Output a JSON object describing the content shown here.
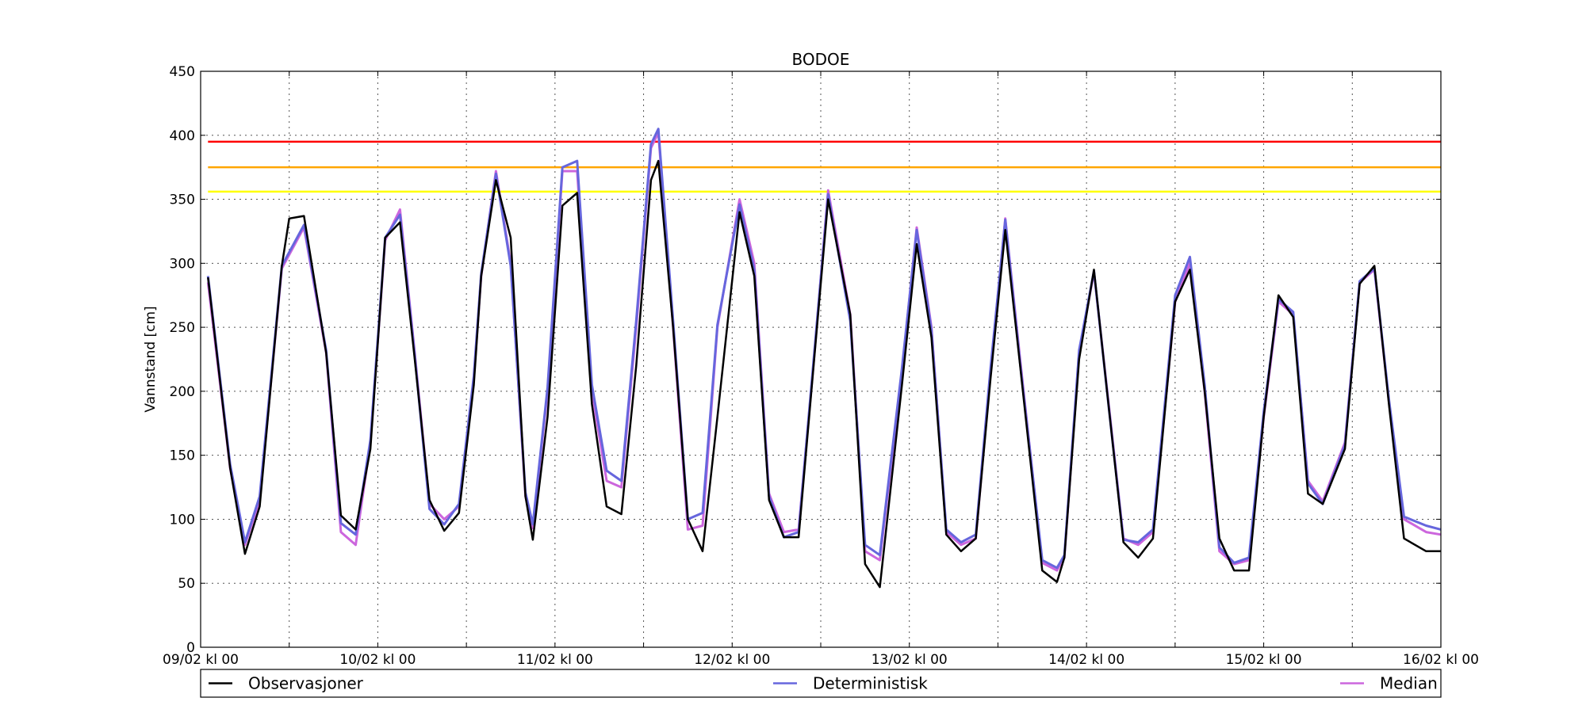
{
  "chart_data": {
    "type": "line",
    "title": "BODOE",
    "xlabel": "",
    "ylabel": "Vannstand [cm]",
    "ylim": [
      0,
      450
    ],
    "yticks": [
      0,
      50,
      100,
      150,
      200,
      250,
      300,
      350,
      400,
      450
    ],
    "x_unit": "hours from 09/02 kl 00",
    "xlim": [
      0,
      168
    ],
    "xtick_labels": [
      "09/02 kl 00",
      "10/02 kl 00",
      "11/02 kl 00",
      "12/02 kl 00",
      "13/02 kl 00",
      "14/02 kl 00",
      "15/02 kl 00",
      "16/02 kl 00"
    ],
    "xticks": [
      0,
      24,
      48,
      72,
      96,
      120,
      144,
      168
    ],
    "xticks_minor": [
      12,
      36,
      60,
      84,
      108,
      132,
      156
    ],
    "grid": true,
    "legend_position": "bottom",
    "thresholds": [
      {
        "value": 395,
        "color": "#ff0000"
      },
      {
        "value": 375,
        "color": "#ffa500"
      },
      {
        "value": 356,
        "color": "#ffff00"
      }
    ],
    "series": [
      {
        "name": "Median",
        "color": "#cc66dd",
        "x": [
          1,
          4,
          6,
          8,
          11,
          14,
          17,
          19,
          21,
          23,
          25,
          27,
          29,
          31,
          33,
          35,
          37,
          38,
          40,
          42,
          44,
          45,
          47,
          49,
          51,
          53,
          55,
          57,
          59,
          61,
          62,
          64,
          66,
          68,
          70,
          73,
          75,
          77,
          79,
          81,
          83,
          85,
          88,
          90,
          92,
          95,
          97,
          99,
          101,
          103,
          105,
          107,
          109,
          111,
          114,
          116,
          117,
          119,
          121,
          123,
          125,
          127,
          129,
          132,
          134,
          136,
          138,
          140,
          142,
          144,
          146,
          148,
          150,
          152,
          155,
          157,
          159,
          161,
          163,
          166,
          168
        ],
        "y": [
          285,
          140,
          80,
          115,
          296,
          328,
          230,
          90,
          80,
          160,
          318,
          342,
          230,
          112,
          100,
          110,
          210,
          290,
          372,
          300,
          118,
          93,
          200,
          372,
          372,
          200,
          130,
          125,
          250,
          390,
          402,
          250,
          92,
          95,
          250,
          350,
          300,
          120,
          90,
          92,
          220,
          357,
          260,
          75,
          68,
          215,
          328,
          250,
          90,
          80,
          85,
          215,
          335,
          225,
          66,
          60,
          70,
          230,
          293,
          190,
          85,
          80,
          90,
          270,
          300,
          200,
          75,
          65,
          68,
          180,
          270,
          260,
          130,
          114,
          160,
          285,
          295,
          190,
          100,
          90,
          88
        ]
      },
      {
        "name": "Deterministisk",
        "color": "#6666dd",
        "x": [
          1,
          4,
          6,
          8,
          11,
          14,
          17,
          19,
          21,
          23,
          25,
          27,
          29,
          31,
          33,
          35,
          37,
          38,
          40,
          42,
          44,
          45,
          47,
          49,
          51,
          53,
          55,
          57,
          59,
          61,
          62,
          64,
          66,
          68,
          70,
          73,
          75,
          77,
          79,
          81,
          83,
          85,
          88,
          90,
          92,
          95,
          97,
          99,
          101,
          103,
          105,
          107,
          109,
          111,
          114,
          116,
          117,
          119,
          121,
          123,
          125,
          127,
          129,
          132,
          134,
          136,
          138,
          140,
          142,
          144,
          146,
          148,
          150,
          152,
          155,
          157,
          159,
          161,
          163,
          166,
          168
        ],
        "y": [
          290,
          143,
          82,
          118,
          298,
          330,
          232,
          97,
          88,
          162,
          320,
          338,
          228,
          108,
          96,
          112,
          212,
          292,
          370,
          298,
          121,
          96,
          203,
          375,
          380,
          205,
          138,
          130,
          255,
          393,
          405,
          255,
          100,
          105,
          252,
          346,
          295,
          118,
          86,
          90,
          222,
          354,
          255,
          80,
          72,
          218,
          326,
          248,
          92,
          82,
          88,
          218,
          334,
          222,
          68,
          62,
          72,
          232,
          294,
          188,
          84,
          82,
          92,
          275,
          305,
          205,
          78,
          66,
          70,
          184,
          272,
          262,
          128,
          112,
          158,
          286,
          296,
          192,
          102,
          95,
          92
        ]
      },
      {
        "name": "Observasjoner",
        "color": "#000000",
        "x": [
          1,
          4,
          6,
          8,
          11,
          12,
          14,
          17,
          19,
          21,
          23,
          25,
          27,
          29,
          31,
          33,
          35,
          37,
          38,
          40,
          42,
          44,
          45,
          47,
          49,
          51,
          53,
          55,
          57,
          59,
          61,
          62,
          64,
          66,
          68,
          70,
          73,
          75,
          77,
          79,
          81,
          83,
          85,
          88,
          90,
          92,
          95,
          97,
          99,
          101,
          103,
          105,
          107,
          109,
          111,
          114,
          116,
          117,
          119,
          121,
          123,
          125,
          127,
          129,
          132,
          134,
          136,
          138,
          140,
          142,
          144,
          146,
          148,
          150,
          152,
          155,
          157,
          159,
          161,
          163,
          166,
          168
        ],
        "y": [
          289,
          140,
          73,
          110,
          298,
          335,
          337,
          230,
          103,
          92,
          155,
          320,
          332,
          225,
          115,
          91,
          105,
          205,
          290,
          365,
          320,
          118,
          84,
          180,
          345,
          355,
          190,
          110,
          104,
          220,
          365,
          380,
          250,
          100,
          75,
          180,
          340,
          290,
          115,
          86,
          86,
          218,
          350,
          260,
          65,
          47,
          205,
          315,
          242,
          88,
          75,
          85,
          210,
          326,
          220,
          60,
          51,
          70,
          225,
          295,
          188,
          82,
          70,
          85,
          270,
          295,
          200,
          85,
          60,
          60,
          180,
          275,
          258,
          120,
          112,
          155,
          284,
          298,
          188,
          85,
          75,
          75
        ]
      }
    ]
  }
}
